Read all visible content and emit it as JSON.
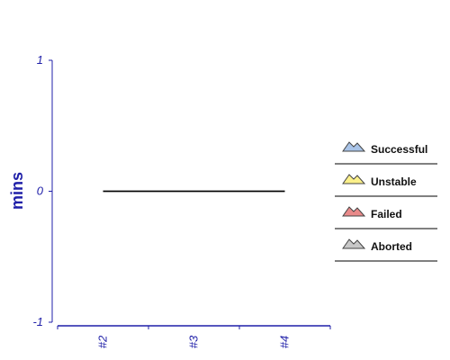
{
  "chart_data": {
    "type": "area",
    "title": "",
    "xlabel": "",
    "ylabel": "mins",
    "categories": [
      "#2",
      "#3",
      "#4"
    ],
    "ylim": [
      -1,
      1
    ],
    "yticks": [
      1,
      0,
      -1
    ],
    "series": [
      {
        "name": "Successful",
        "values": [
          0,
          0,
          0
        ],
        "color": "#a9c4e8"
      },
      {
        "name": "Unstable",
        "values": [
          0,
          0,
          0
        ],
        "color": "#fbf08a"
      },
      {
        "name": "Failed",
        "values": [
          0,
          0,
          0
        ],
        "color": "#e98a8a"
      },
      {
        "name": "Aborted",
        "values": [
          0,
          0,
          0
        ],
        "color": "#c8c8c8"
      }
    ],
    "legend_position": "right",
    "grid": false
  },
  "colors": {
    "axis": "#1f1fa8",
    "data_line": "#000000",
    "legend_divider": "#000000"
  }
}
